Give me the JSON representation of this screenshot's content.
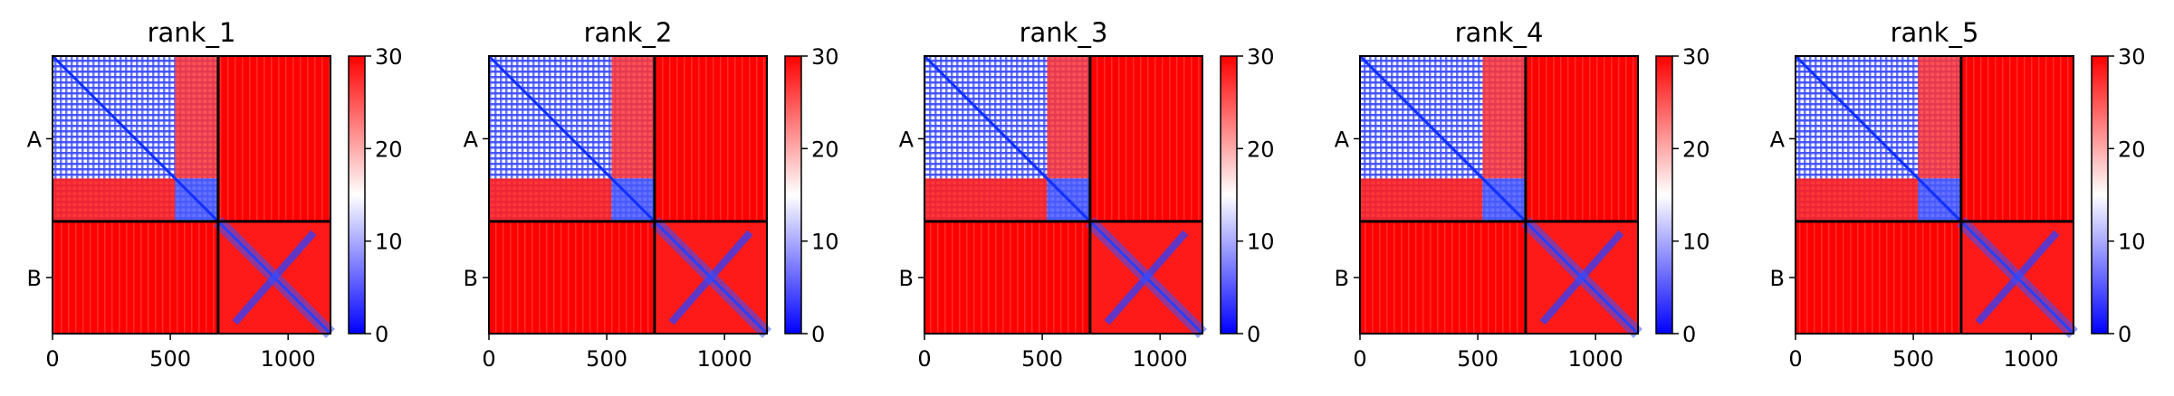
{
  "chart_data": {
    "type": "heatmap",
    "colormap": [
      "#0000ff",
      "#ffffff",
      "#ff0000"
    ],
    "color_range": [
      0,
      30
    ],
    "colorbar_ticks": [
      "0",
      "10",
      "20",
      "30"
    ],
    "x_range": [
      0,
      1180
    ],
    "x_ticks": [
      0,
      500,
      1000
    ],
    "x_tick_labels": [
      "0",
      "500",
      "1000"
    ],
    "chain_boundary": 703,
    "chain_labels": [
      "A",
      "B"
    ],
    "panels": [
      {
        "title": "rank_1"
      },
      {
        "title": "rank_2"
      },
      {
        "title": "rank_3"
      },
      {
        "title": "rank_4"
      },
      {
        "title": "rank_5"
      }
    ]
  }
}
